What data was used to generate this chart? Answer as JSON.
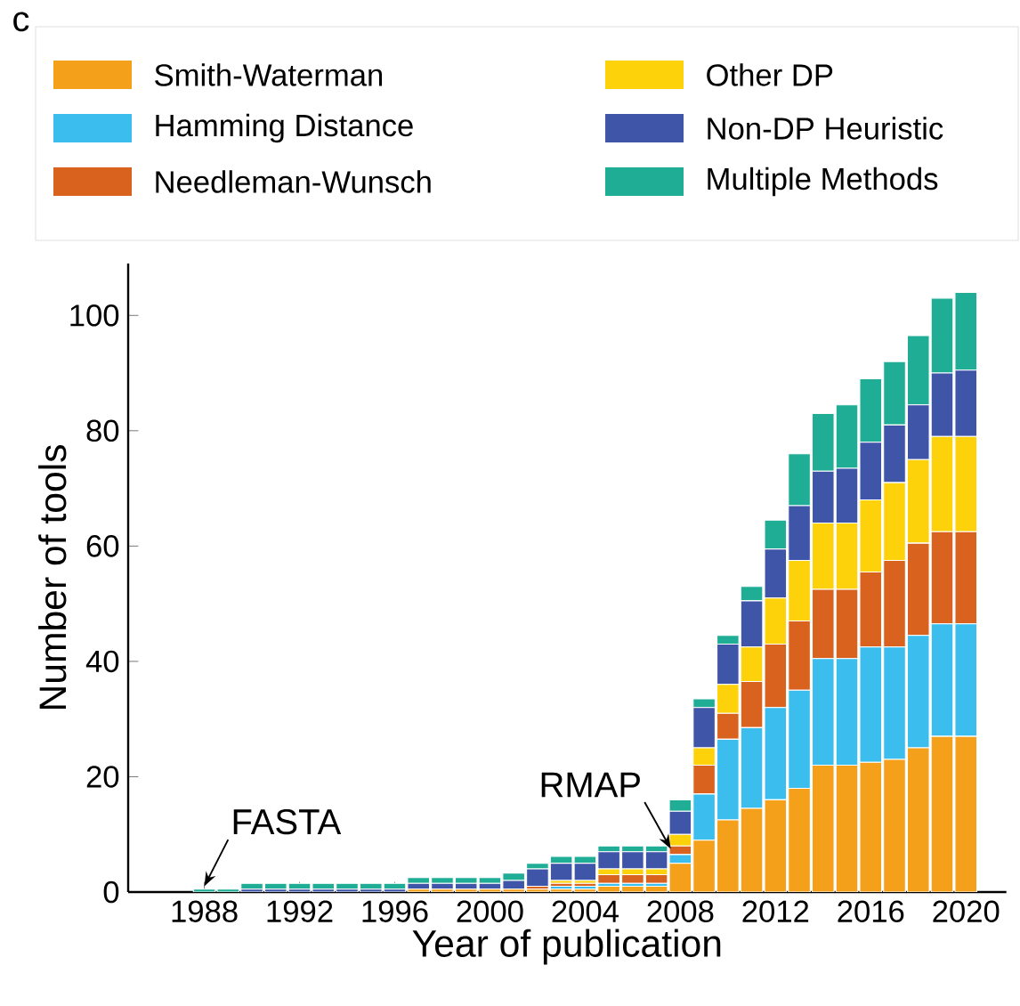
{
  "chart_data": {
    "type": "bar",
    "stacked": true,
    "x": [
      1988,
      1989,
      1990,
      1991,
      1992,
      1993,
      1994,
      1995,
      1996,
      1997,
      1998,
      1999,
      2000,
      2001,
      2002,
      2003,
      2004,
      2005,
      2006,
      2007,
      2008,
      2009,
      2010,
      2011,
      2012,
      2013,
      2014,
      2015,
      2016,
      2017,
      2018,
      2019,
      2020
    ],
    "series": [
      {
        "name": "Smith-Waterman",
        "color": "#f5a01a",
        "values": [
          0,
          0,
          0,
          0,
          0,
          0,
          0,
          0,
          0,
          0.5,
          0.5,
          0.5,
          0.5,
          0.5,
          0.5,
          0.5,
          0.5,
          1,
          1,
          1,
          5,
          9,
          12.5,
          14.5,
          16,
          18,
          22,
          22,
          22.5,
          23,
          25,
          27,
          27
        ]
      },
      {
        "name": "Hamming Distance",
        "color": "#3bbdee",
        "values": [
          0,
          0,
          0,
          0,
          0,
          0,
          0,
          0,
          0,
          0,
          0,
          0,
          0,
          0,
          0,
          0.5,
          0.5,
          0.5,
          0.5,
          0.5,
          1.5,
          8,
          14,
          14,
          16,
          17,
          18.5,
          18.5,
          20,
          19.5,
          19.5,
          19.5,
          19.5
        ]
      },
      {
        "name": "Needleman-Wunsch",
        "color": "#d9621f",
        "values": [
          0,
          0,
          0,
          0,
          0,
          0,
          0,
          0,
          0,
          0,
          0,
          0,
          0,
          0,
          0.5,
          0.5,
          0.5,
          1.5,
          1.5,
          1.5,
          1.5,
          5,
          4.5,
          8,
          11,
          12,
          12,
          12,
          13,
          15,
          16,
          16,
          16
        ]
      },
      {
        "name": "Other DP",
        "color": "#fdd20a",
        "values": [
          0,
          0,
          0,
          0,
          0,
          0,
          0,
          0,
          0,
          0,
          0,
          0,
          0,
          0,
          0,
          0.5,
          0.5,
          1,
          1,
          1,
          2,
          3,
          5,
          6,
          8,
          10.5,
          11.5,
          11.5,
          12.5,
          13.5,
          14.5,
          16.5,
          16.5
        ]
      },
      {
        "name": "Non-DP Heuristic",
        "color": "#3f55a8",
        "values": [
          0,
          0,
          0.5,
          0.5,
          0.5,
          0.5,
          0.5,
          0.5,
          0.5,
          1,
          1,
          1,
          1,
          1.5,
          3,
          3,
          3,
          3,
          3,
          3,
          4,
          7,
          7,
          8,
          8.5,
          9.5,
          9,
          9.5,
          10,
          10,
          9.5,
          11,
          11.5
        ]
      },
      {
        "name": "Multiple Methods",
        "color": "#1fae95",
        "values": [
          0.5,
          0.5,
          1,
          1,
          1,
          1,
          1,
          1,
          1,
          1,
          1,
          1,
          1,
          1.3,
          1,
          1.2,
          1.2,
          1,
          1,
          1,
          2,
          1.5,
          1.5,
          2.5,
          5,
          9,
          10,
          11,
          11,
          11,
          12,
          13,
          13.5
        ]
      }
    ],
    "xlabel": "Year of publication",
    "ylabel": "Number of tools",
    "xlim": [
      1984.8,
      2021.7
    ],
    "xticks": [
      1988,
      1992,
      1996,
      2000,
      2004,
      2008,
      2012,
      2016,
      2020
    ],
    "ylim": [
      0,
      109
    ],
    "yticks": [
      0,
      20,
      40,
      60,
      80,
      100
    ],
    "legend": "top",
    "grid": false,
    "annotations": [
      "c",
      {
        "text": "FASTA",
        "x": 1988,
        "y": 0.5
      },
      {
        "text": "RMAP",
        "x": 2008,
        "y": 7
      }
    ]
  }
}
